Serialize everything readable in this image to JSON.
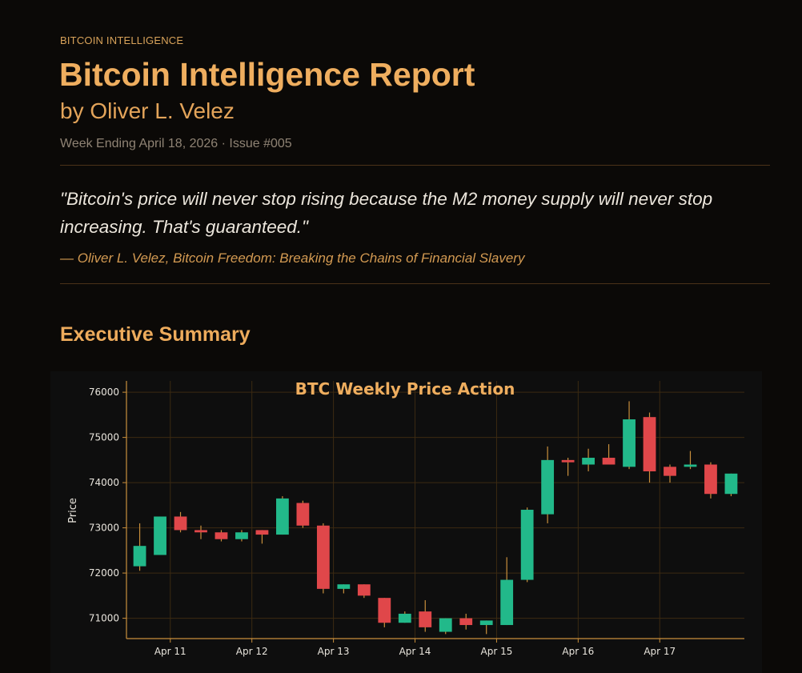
{
  "header": {
    "kicker": "BITCOIN INTELLIGENCE",
    "title": "Bitcoin Intelligence Report",
    "author": "by Oliver L. Velez",
    "issue": "Week Ending April 18, 2026 · Issue #005"
  },
  "quote": {
    "text": "\"Bitcoin's price will never stop rising because the M2 money supply will never stop increasing. That's guaranteed.\"",
    "attribution": "— Oliver L. Velez, Bitcoin Freedom: Breaking the Chains of Financial Slavery"
  },
  "section": {
    "heading": "Executive Summary"
  },
  "colors": {
    "accent": "#efae5f",
    "up": "#22b98a",
    "down": "#e0474a",
    "wick": "#c98f3c",
    "grid": "#3c2a12",
    "axis": "#c98f3c"
  },
  "chart_data": {
    "type": "candlestick",
    "title": "BTC Weekly Price Action",
    "xlabel": "",
    "ylabel": "Price",
    "ylim": [
      70550,
      76250
    ],
    "xlim": [
      -0.65,
      29.65
    ],
    "yticks": [
      71000,
      72000,
      73000,
      74000,
      75000,
      76000
    ],
    "xticks": [
      {
        "label": "Apr 11",
        "pos": 1.5
      },
      {
        "label": "Apr 12",
        "pos": 5.5
      },
      {
        "label": "Apr 13",
        "pos": 9.5
      },
      {
        "label": "Apr 14",
        "pos": 13.5
      },
      {
        "label": "Apr 15",
        "pos": 17.5
      },
      {
        "label": "Apr 16",
        "pos": 21.5
      },
      {
        "label": "Apr 17",
        "pos": 25.5
      }
    ],
    "grid": true,
    "candles": [
      {
        "open": 72150,
        "high": 73100,
        "low": 72050,
        "close": 72600
      },
      {
        "open": 72400,
        "high": 73250,
        "low": 72400,
        "close": 73250
      },
      {
        "open": 73250,
        "high": 73350,
        "low": 72900,
        "close": 72950
      },
      {
        "open": 72950,
        "high": 73050,
        "low": 72750,
        "close": 72900
      },
      {
        "open": 72900,
        "high": 72950,
        "low": 72700,
        "close": 72750
      },
      {
        "open": 72750,
        "high": 72950,
        "low": 72700,
        "close": 72900
      },
      {
        "open": 72950,
        "high": 72950,
        "low": 72650,
        "close": 72850
      },
      {
        "open": 72850,
        "high": 73700,
        "low": 72850,
        "close": 73650
      },
      {
        "open": 73550,
        "high": 73600,
        "low": 73000,
        "close": 73050
      },
      {
        "open": 73050,
        "high": 73100,
        "low": 71550,
        "close": 71650
      },
      {
        "open": 71650,
        "high": 71750,
        "low": 71550,
        "close": 71750
      },
      {
        "open": 71750,
        "high": 71750,
        "low": 71450,
        "close": 71500
      },
      {
        "open": 71450,
        "high": 71450,
        "low": 70800,
        "close": 70900
      },
      {
        "open": 70900,
        "high": 71150,
        "low": 70900,
        "close": 71100
      },
      {
        "open": 71150,
        "high": 71400,
        "low": 70700,
        "close": 70800
      },
      {
        "open": 70700,
        "high": 71000,
        "low": 70650,
        "close": 71000
      },
      {
        "open": 71000,
        "high": 71100,
        "low": 70750,
        "close": 70850
      },
      {
        "open": 70850,
        "high": 70950,
        "low": 70650,
        "close": 70950
      },
      {
        "open": 70850,
        "high": 72350,
        "low": 70850,
        "close": 71850
      },
      {
        "open": 71850,
        "high": 73450,
        "low": 71800,
        "close": 73400
      },
      {
        "open": 73300,
        "high": 74800,
        "low": 73100,
        "close": 74500
      },
      {
        "open": 74500,
        "high": 74550,
        "low": 74150,
        "close": 74450
      },
      {
        "open": 74400,
        "high": 74750,
        "low": 74250,
        "close": 74550
      },
      {
        "open": 74550,
        "high": 74850,
        "low": 74400,
        "close": 74400
      },
      {
        "open": 74350,
        "high": 75800,
        "low": 74300,
        "close": 75400
      },
      {
        "open": 75450,
        "high": 75550,
        "low": 74000,
        "close": 74250
      },
      {
        "open": 74350,
        "high": 74400,
        "low": 74000,
        "close": 74150
      },
      {
        "open": 74350,
        "high": 74700,
        "low": 74300,
        "close": 74400
      },
      {
        "open": 74400,
        "high": 74450,
        "low": 73650,
        "close": 73750
      },
      {
        "open": 73750,
        "high": 74200,
        "low": 73700,
        "close": 74200
      }
    ]
  }
}
